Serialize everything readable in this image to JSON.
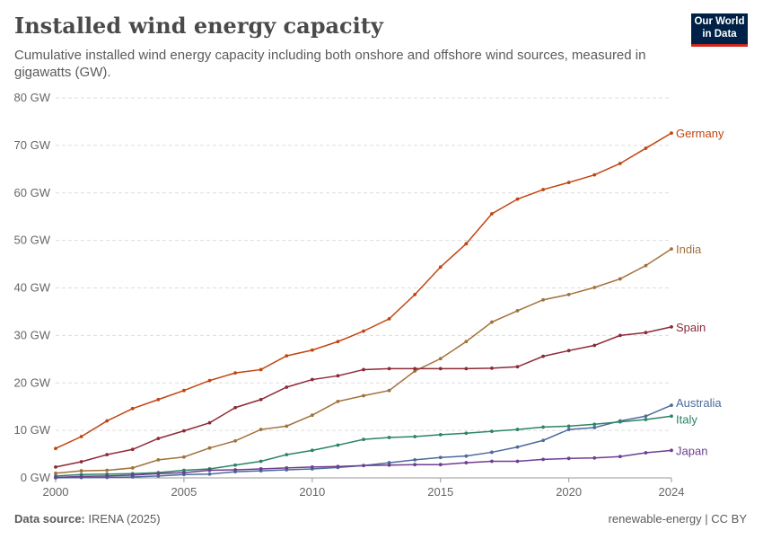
{
  "header": {
    "title": "Installed wind energy capacity",
    "subtitle": "Cumulative installed wind energy capacity including both onshore and offshore wind sources, measured in gigawatts (GW).",
    "logo_text": "Our World in Data"
  },
  "footer": {
    "source_label": "Data source:",
    "source": "IRENA (2025)",
    "right": "renewable-energy | CC BY"
  },
  "chart_data": {
    "type": "line",
    "title": "Installed wind energy capacity",
    "xlabel": "",
    "ylabel": "",
    "xlim": [
      2000,
      2024
    ],
    "ylim": [
      0,
      80
    ],
    "grid": true,
    "legend": "inline-right",
    "x_ticks": [
      "2000",
      "2005",
      "2010",
      "2015",
      "2020",
      "2024"
    ],
    "y_ticks": [
      "0 GW",
      "10 GW",
      "20 GW",
      "30 GW",
      "40 GW",
      "50 GW",
      "60 GW",
      "70 GW",
      "80 GW"
    ],
    "x": [
      2000,
      2001,
      2002,
      2003,
      2004,
      2005,
      2006,
      2007,
      2008,
      2009,
      2010,
      2011,
      2012,
      2013,
      2014,
      2015,
      2016,
      2017,
      2018,
      2019,
      2020,
      2021,
      2022,
      2023,
      2024
    ],
    "series": [
      {
        "name": "Germany",
        "color": "#c1440e",
        "values": [
          6.2,
          8.7,
          12.0,
          14.6,
          16.5,
          18.4,
          20.5,
          22.1,
          22.8,
          25.7,
          26.9,
          28.7,
          30.9,
          33.5,
          38.6,
          44.4,
          49.3,
          55.6,
          58.7,
          60.7,
          62.2,
          63.8,
          66.2,
          69.4,
          72.6
        ]
      },
      {
        "name": "India",
        "color": "#a2713b",
        "values": [
          1.0,
          1.5,
          1.6,
          2.1,
          3.8,
          4.4,
          6.3,
          7.8,
          10.2,
          10.9,
          13.2,
          16.1,
          17.3,
          18.4,
          22.5,
          25.1,
          28.7,
          32.8,
          35.2,
          37.5,
          38.6,
          40.1,
          41.9,
          44.7,
          48.2
        ]
      },
      {
        "name": "Spain",
        "color": "#8c2a35",
        "values": [
          2.3,
          3.4,
          4.9,
          6.0,
          8.3,
          9.9,
          11.6,
          14.8,
          16.5,
          19.1,
          20.7,
          21.5,
          22.8,
          23.0,
          23.0,
          23.0,
          23.0,
          23.1,
          23.4,
          25.6,
          26.8,
          27.9,
          30.0,
          30.6,
          31.8
        ]
      },
      {
        "name": "Australia",
        "color": "#4c6a9c",
        "values": [
          0.03,
          0.07,
          0.1,
          0.2,
          0.4,
          0.7,
          0.8,
          1.3,
          1.5,
          1.7,
          1.9,
          2.2,
          2.6,
          3.2,
          3.8,
          4.3,
          4.6,
          5.4,
          6.5,
          7.9,
          10.2,
          10.6,
          12.0,
          13.0,
          15.3
        ]
      },
      {
        "name": "Italy",
        "color": "#2b8465",
        "values": [
          0.4,
          0.7,
          0.8,
          0.9,
          1.1,
          1.6,
          1.9,
          2.7,
          3.5,
          4.9,
          5.8,
          6.9,
          8.1,
          8.5,
          8.7,
          9.1,
          9.4,
          9.8,
          10.2,
          10.7,
          10.9,
          11.3,
          11.8,
          12.3,
          13.0
        ]
      },
      {
        "name": "Japan",
        "color": "#6d3e91",
        "values": [
          0.1,
          0.3,
          0.4,
          0.6,
          0.9,
          1.1,
          1.6,
          1.7,
          1.9,
          2.1,
          2.3,
          2.4,
          2.6,
          2.7,
          2.8,
          2.8,
          3.2,
          3.5,
          3.5,
          3.9,
          4.1,
          4.2,
          4.5,
          5.3,
          5.8
        ]
      }
    ]
  }
}
